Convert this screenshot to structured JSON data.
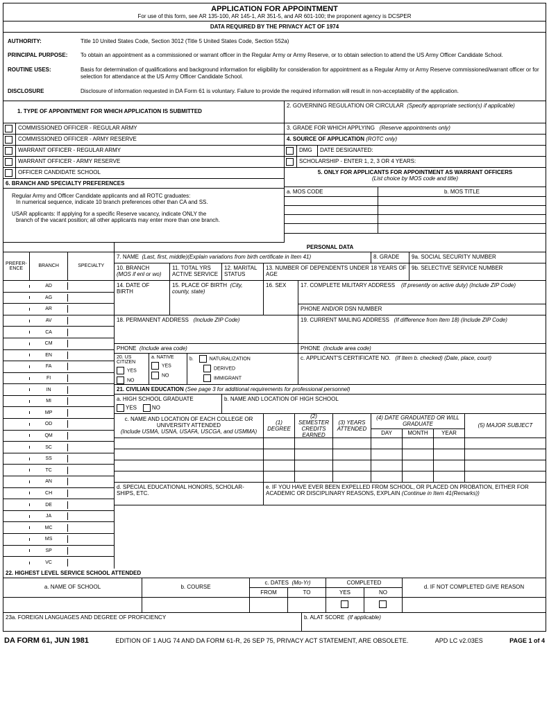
{
  "header": {
    "title": "APPLICATION FOR APPOINTMENT",
    "subtitle": "For use of this form, see AR 135-100, AR 145-1, AR 351-5, and AR 601-100; the proponent agency is DCSPER",
    "privacy_header": "DATA REQUIRED BY THE PRIVACY ACT OF 1974"
  },
  "privacy": {
    "authority_label": "AUTHORITY:",
    "authority": "Title 10 United States Code, Section 3012 (Title 5 United States Code, Section 552a)",
    "purpose_label": "PRINCIPAL PURPOSE:",
    "purpose": "To obtain an appointment as a commissioned or warrant officer in the Regular Army or Army Reserve, or to obtain selection to attend the US Army Officer Candidate School.",
    "routine_label": "ROUTINE USES:",
    "routine": "Basis for determination of qualifications and background information for eligibility for consideration for appointment as a Regular Army or Army Reserve commissioned/warrant officer or for selection for attendance at the US Army Officer Candidate School.",
    "disclosure_label": "DISCLOSURE",
    "disclosure": "Disclosure of information requested in DA Form 61 is voluntary. Failure to provide the required information will result in non-acceptability of the application."
  },
  "s1": {
    "title": "1.   TYPE OF APPOINTMENT FOR WHICH APPLICATION IS SUBMITTED",
    "opts": [
      "COMMISSIONED OFFICER - REGULAR ARMY",
      "COMMISSIONED OFFICER - ARMY RESERVE",
      "WARRANT OFFICER - REGULAR ARMY",
      "WARRANT OFFICER - ARMY RESERVE",
      "OFFICER CANDIDATE SCHOOL"
    ]
  },
  "s2": "2.   GOVERNING REGULATION OR CIRCULAR",
  "s2_note": "(Specify appropriate section(s) if applicable)",
  "s3": "3.   GRADE FOR WHICH APPLYING",
  "s3_note": "(Reserve appointments only)",
  "s4": "4.   SOURCE OF APPLICATION",
  "s4_note": "(ROTC only)",
  "s4_dmg": "DMG",
  "s4_date": "DATE DESIGNATED:",
  "s4_scholar": "SCHOLARSHIP - ENTER 1, 2, 3 OR 4 YEARS:",
  "s5": "5.   ONLY FOR APPLICANTS FOR APPOINTMENT AS WARRANT OFFICERS",
  "s5_note": "(List choice by MOS code and title)",
  "s5_mos": "a. MOS CODE",
  "s5_title": "b. MOS TITLE",
  "s6": "6.    BRANCH AND SPECIALTY PREFERENCES",
  "s6_text1": "Regular Army and Officer Candidate applicants and all ROTC graduates:",
  "s6_text2": "In numerical sequence, indicate 10 branch preferences other than CA and SS.",
  "s6_text3": "USAR applicants: If applying for a specific Reserve vacancy, indicate         ONLY   the",
  "s6_text4": "branch of the vacant position; all other applicants may enter more than one branch.",
  "personal": "PERSONAL DATA",
  "pref_hdr": "PREFER-ENCE",
  "branch_hdr": "BRANCH",
  "spec_hdr": "SPECIALTY",
  "branches": [
    "AD",
    "AG",
    "AR",
    "AV",
    "CA",
    "CM",
    "EN",
    "FA",
    "FI",
    "IN",
    "MI",
    "MP",
    "OD",
    "QM",
    "SC",
    "SS",
    "TC",
    "AN",
    "CH",
    "DE",
    "JA",
    "MC",
    "MS",
    "SP",
    "VC"
  ],
  "f7": "7.  NAME",
  "f7_note": "(Last, first, middle)(Explain variations from birth certificate in Item  41)",
  "f8": "8. GRADE",
  "f9a": "9a. SOCIAL SECURITY NUMBER",
  "f9b": "9b. SELECTIVE SERVICE NUMBER",
  "f10": "10. BRANCH",
  "f10_note": "(MOS if enl or wo)",
  "f11": "11. TOTAL YRS ACTIVE SERVICE",
  "f12": "12. MARITAL STATUS",
  "f13": "13. NUMBER OF DEPENDENTS UNDER 18 YEARS OF AGE",
  "f14": "14. DATE OF BIRTH",
  "f15": "15. PLACE OF BIRTH",
  "f15_note": "(City, county, state)",
  "f16": "16. SEX",
  "f17": "17. COMPLETE MILITARY ADDRESS",
  "f17_note": "(If presently on active duty) (Include ZIP Code)",
  "f17_phone": "PHONE AND/OR DSN NUMBER",
  "f18": "18. PERMANENT ADDRESS",
  "f18_note": "(Include ZIP Code)",
  "f18_phone": "PHONE",
  "f18_phone_note": "(Include area code)",
  "f19": "19. CURRENT MAILING ADDRESS",
  "f19_note": "(If difference from Item 18) (Include ZIP Code)",
  "f19_phone": "PHONE",
  "f19_phone_note": "(Include area code)",
  "f20": "20. US CITIZEN",
  "f20_yes": "YES",
  "f20_no": "NO",
  "f20a": "a. NATIVE",
  "f20b": "b.",
  "f20_nat": "NATURALIZATION",
  "f20_der": "DERIVED",
  "f20_imm": "IMMIGRANT",
  "f20c": "c. APPLICANT'S CERTIFICATE NO.",
  "f20c_note": "(If Item b. checked) (Date, place, court)",
  "f21": "21. CIVILIAN EDUCATION",
  "f21_note": "(See page 3 for additional requirements for professional personnel)",
  "f21a": "a. HIGH SCHOOL GRADUATE",
  "f21b": "b. NAME AND LOCATION OF HIGH SCHOOL",
  "f21c": "c. NAME AND LOCATION OF EACH COLLEGE OR UNIVERSITY ATTENDED",
  "f21c_note": "(Include USMA, USNA, USAFA, USCGA, and USMMA)",
  "f21_1": "(1) DEGREE",
  "f21_2": "(2) SEMESTER CREDITS EARNED",
  "f21_3": "(3) YEARS ATTENDED",
  "f21_4": "(4) DATE GRADUATED OR WILL GRADUATE",
  "f21_5": "(5) MAJOR SUBJECT",
  "f21_day": "DAY",
  "f21_month": "MONTH",
  "f21_year": "YEAR",
  "f21d": "d. SPECIAL EDUCATIONAL HONORS, SCHOLAR-SHIPS, ETC.",
  "f21e": "e. IF YOU HAVE EVER BEEN EXPELLED FROM SCHOOL, OR PLACED ON PROBATION, EITHER FOR ACADEMIC OR DISCIPLINARY REASONS, EXPLAIN",
  "f21e_note": "(Continue in Item 41(Remarks))",
  "f22": "22.    HIGHEST LEVEL SERVICE SCHOOL ATTENDED",
  "f22a": "a. NAME OF SCHOOL",
  "f22b": "b. COURSE",
  "f22c": "c. DATES",
  "f22c_note": "(Mo-Yr)",
  "f22_from": "FROM",
  "f22_to": "TO",
  "f22_comp": "COMPLETED",
  "f22_yes": "YES",
  "f22_no": "NO",
  "f22d": "d. IF NOT COMPLETED GIVE REASON",
  "f23a": "23a. FOREIGN LANGUAGES AND DEGREE OF PROFICIENCY",
  "f23b": "b. ALAT SCORE",
  "f23b_note": "(If applicable)",
  "footer": {
    "form": "DA FORM 61, JUN 1981",
    "edition": "EDITION OF 1 AUG 74 AND DA FORM 61-R, 26 SEP 75, PRIVACY ACT STATEMENT, ARE OBSOLETE.",
    "apd": "APD LC v2.03ES",
    "page": "PAGE 1 of 4"
  }
}
